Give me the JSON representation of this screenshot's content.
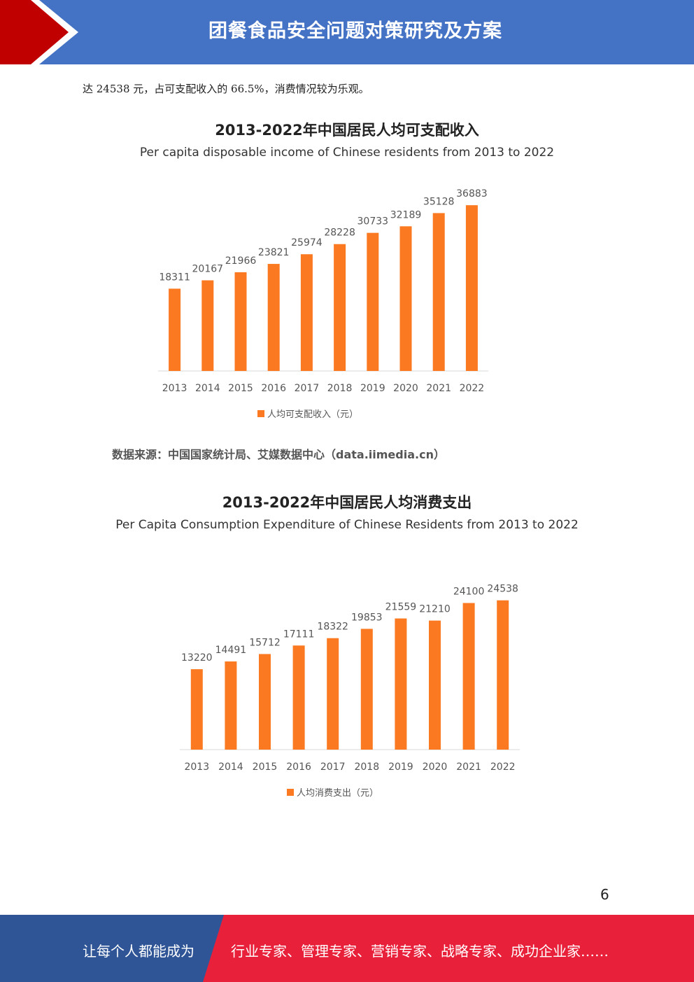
{
  "header": {
    "title": "团餐食品安全问题对策研究及方案",
    "colors": {
      "band": "#4472c4",
      "chevron": "#c00000"
    }
  },
  "intro_text": "达 24538 元，占可支配收入的 66.5%，消费情况较为乐观。",
  "chart1": {
    "title": "2013-2022年中国居民人均可支配收入",
    "subtitle": "Per capita disposable income of Chinese residents from 2013 to 2022"
  },
  "chart2": {
    "title": "2013-2022年中国居民人均消费支出",
    "subtitle": "Per Capita Consumption Expenditure of Chinese Residents from 2013 to 2022"
  },
  "source_text": "数据来源：中国国家统计局、艾媒数据中心（data.iimedia.cn）",
  "page_number": "6",
  "footer": {
    "left_text": "让每个人都能成为",
    "right_text": "行业专家、管理专家、营销专家、战略专家、成功企业家……",
    "colors": {
      "left": "#2f5597",
      "right": "#e8203a"
    }
  },
  "chart_data": [
    {
      "type": "bar",
      "title": "2013-2022年中国居民人均可支配收入",
      "subtitle": "Per capita disposable income of Chinese residents from 2013 to 2022",
      "categories": [
        "2013",
        "2014",
        "2015",
        "2016",
        "2017",
        "2018",
        "2019",
        "2020",
        "2021",
        "2022"
      ],
      "series": [
        {
          "name": "人均可支配收入（元）",
          "values": [
            18311,
            20167,
            21966,
            23821,
            25974,
            28228,
            30733,
            32189,
            35128,
            36883
          ],
          "color": "#fb7a21"
        }
      ],
      "ylim": [
        0,
        38000
      ],
      "grid": false,
      "legend": "bottom"
    },
    {
      "type": "bar",
      "title": "2013-2022年中国居民人均消费支出",
      "subtitle": "Per Capita Consumption Expenditure of Chinese Residents from 2013 to 2022",
      "categories": [
        "2013",
        "2014",
        "2015",
        "2016",
        "2017",
        "2018",
        "2019",
        "2020",
        "2021",
        "2022"
      ],
      "series": [
        {
          "name": "人均消费支出（元）",
          "values": [
            13220,
            14491,
            15712,
            17111,
            18322,
            19853,
            21559,
            21210,
            24100,
            24538
          ],
          "color": "#fb7a21"
        }
      ],
      "ylim": [
        0,
        26000
      ],
      "grid": false,
      "legend": "bottom"
    }
  ]
}
